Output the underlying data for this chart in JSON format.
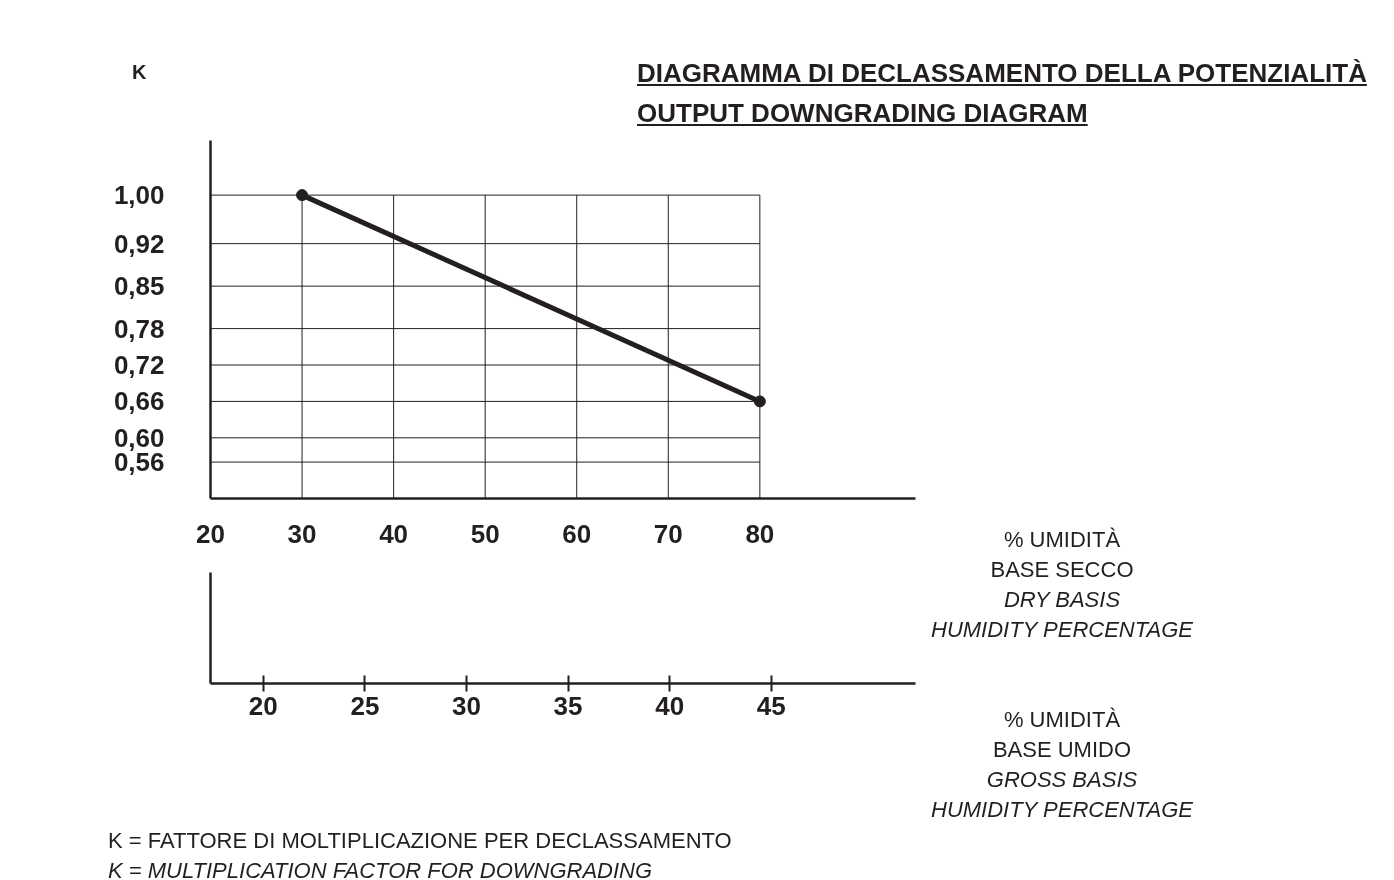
{
  "chart_data": {
    "type": "line",
    "title": "DIAGRAMMA DI DECLASSAMENTO DELLA POTENZIALITÀ\nOUTPUT DOWNGRADING DIAGRAM",
    "ylabel": "K",
    "xlabel": "% UMIDITÀ\nBASE SECCO\nDRY BASIS\nHUMIDITY PERCENTAGE",
    "x2label": "% UMIDITÀ\nBASE UMIDO\nGROSS BASIS\nHUMIDITY PERCENTAGE",
    "annotations": [
      "K = FATTORE DI MOLTIPLICAZIONE PER DECLASSAMENTO",
      "K = MULTIPLICATION FACTOR FOR DOWNGRADING"
    ],
    "x": [
      30,
      80
    ],
    "series": [
      {
        "color": "#231f20",
        "values": [
          1.0,
          0.66
        ]
      }
    ],
    "marker": "circle",
    "grid": true,
    "xlim": [
      20,
      97
    ],
    "xticks": [
      20,
      30,
      40,
      50,
      60,
      70,
      80
    ],
    "ylim": [
      0.5,
      1.09
    ],
    "yticks": [
      {
        "value": 1.0,
        "label": "1,00"
      },
      {
        "value": 0.92,
        "label": "0,92"
      },
      {
        "value": 0.85,
        "label": "0,85"
      },
      {
        "value": 0.78,
        "label": "0,78"
      },
      {
        "value": 0.72,
        "label": "0,72"
      },
      {
        "value": 0.66,
        "label": "0,66"
      },
      {
        "value": 0.6,
        "label": "0,60"
      },
      {
        "value": 0.56,
        "label": "0,56"
      }
    ],
    "x2lim": [
      17.4,
      52.1
    ],
    "x2ticks": [
      20,
      25,
      30,
      35,
      40,
      45
    ]
  }
}
